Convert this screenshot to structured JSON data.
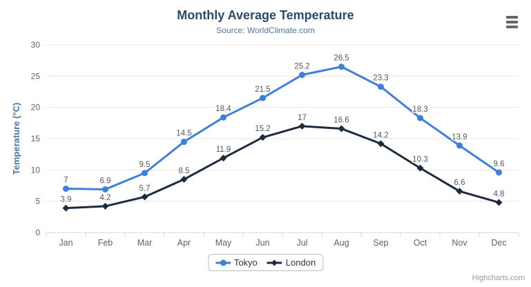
{
  "chart_data": {
    "type": "line",
    "title": "Monthly Average Temperature",
    "subtitle": "Source: WorldClimate.com",
    "categories": [
      "Jan",
      "Feb",
      "Mar",
      "Apr",
      "May",
      "Jun",
      "Jul",
      "Aug",
      "Sep",
      "Oct",
      "Nov",
      "Dec"
    ],
    "series": [
      {
        "name": "Tokyo",
        "color": "#3E7FDE",
        "marker": "circle",
        "values": [
          7,
          6.9,
          9.5,
          14.5,
          18.4,
          21.5,
          25.2,
          26.5,
          23.3,
          18.3,
          13.9,
          9.6
        ]
      },
      {
        "name": "London",
        "color": "#1C2B3E",
        "marker": "diamond",
        "values": [
          3.9,
          4.2,
          5.7,
          8.5,
          11.9,
          15.2,
          17,
          16.6,
          14.2,
          10.3,
          6.6,
          4.8
        ]
      }
    ],
    "xlabel": "",
    "ylabel": "Temperature (°C)",
    "ylim": [
      0,
      30
    ],
    "y_ticks": [
      0,
      5,
      10,
      15,
      20,
      25,
      30
    ],
    "grid": true,
    "data_labels": true,
    "legend_position": "bottom-center"
  },
  "colors": {
    "title": "#2A4B6A",
    "subtitle": "#4D759E",
    "axis_label": "#606060",
    "axis_title": "#4A77A9",
    "gridline": "#E6E6E6",
    "axis_line": "#CCD6EB",
    "data_label": "#555555",
    "legend_text": "#333333",
    "credits": "#999999",
    "menu_icon": "#666666"
  },
  "credits": {
    "label": "Highcharts.com"
  }
}
